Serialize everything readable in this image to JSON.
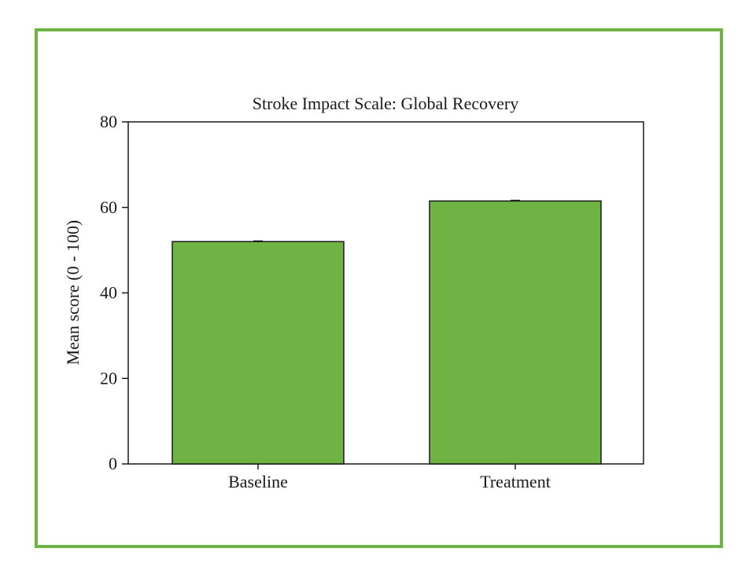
{
  "chart_data": {
    "type": "bar",
    "title": "Stroke Impact Scale: Global Recovery",
    "xlabel": "",
    "ylabel": "Mean score (0 - 100)",
    "categories": [
      "Baseline",
      "Treatment"
    ],
    "values": [
      52,
      61.5
    ],
    "ylim": [
      0,
      80
    ],
    "yticks": [
      "0",
      "20",
      "40",
      "60",
      "80"
    ],
    "grid": false,
    "legend": "none"
  },
  "colors": {
    "bar_fill": "#70b345",
    "bar_stroke": "#1a1a1a",
    "frame_border": "#70b345",
    "axis": "#1a1a1a"
  }
}
